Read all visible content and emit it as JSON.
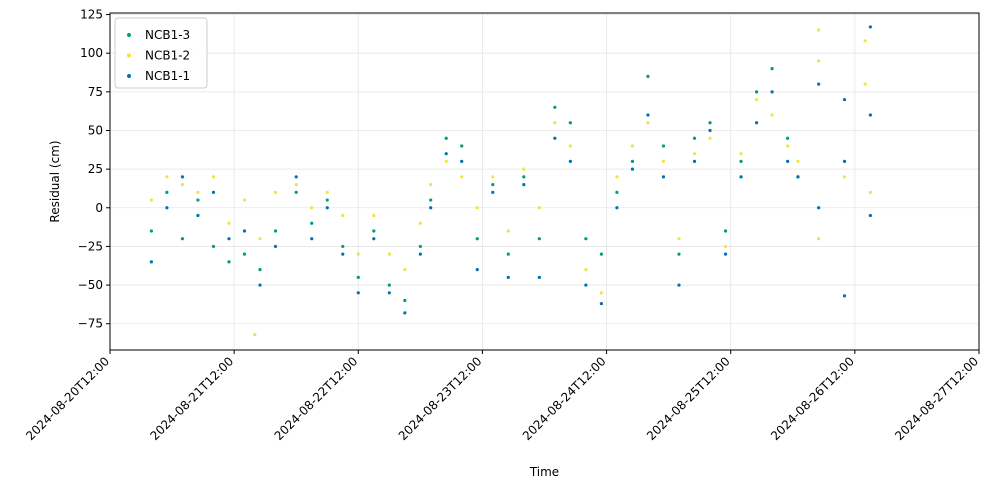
{
  "chart_data": {
    "type": "scatter",
    "xlabel": "Time",
    "ylabel": "Residual (cm)",
    "x_axis_kind": "datetime",
    "xlim": [
      "2024-08-20T12:00",
      "2024-08-27T12:00"
    ],
    "ylim": [
      -92,
      126
    ],
    "x_ticks": [
      "2024-08-20T12:00",
      "2024-08-21T12:00",
      "2024-08-22T12:00",
      "2024-08-23T12:00",
      "2024-08-24T12:00",
      "2024-08-25T12:00",
      "2024-08-26T12:00",
      "2024-08-27T12:00"
    ],
    "y_ticks": [
      -75,
      -50,
      -25,
      0,
      25,
      50,
      75,
      100,
      125
    ],
    "y_tick_labels": [
      "−75",
      "−50",
      "−25",
      "0",
      "25",
      "50",
      "75",
      "100",
      "125"
    ],
    "grid": true,
    "legend_position": "top-left",
    "series": [
      {
        "name": "NCB1-3",
        "color": "#009e73",
        "points": [
          [
            "2024-08-20T20:00",
            -15
          ],
          [
            "2024-08-20T23:00",
            10
          ],
          [
            "2024-08-21T02:00",
            -20
          ],
          [
            "2024-08-21T05:00",
            5
          ],
          [
            "2024-08-21T08:00",
            -25
          ],
          [
            "2024-08-21T11:00",
            -35
          ],
          [
            "2024-08-21T14:00",
            -30
          ],
          [
            "2024-08-21T17:00",
            -40
          ],
          [
            "2024-08-21T20:00",
            -15
          ],
          [
            "2024-08-22T00:00",
            10
          ],
          [
            "2024-08-22T03:00",
            -10
          ],
          [
            "2024-08-22T06:00",
            5
          ],
          [
            "2024-08-22T09:00",
            -25
          ],
          [
            "2024-08-22T12:00",
            -45
          ],
          [
            "2024-08-22T15:00",
            -15
          ],
          [
            "2024-08-22T18:00",
            -50
          ],
          [
            "2024-08-22T21:00",
            -60
          ],
          [
            "2024-08-23T00:00",
            -25
          ],
          [
            "2024-08-23T02:00",
            5
          ],
          [
            "2024-08-23T05:00",
            45
          ],
          [
            "2024-08-23T08:00",
            40
          ],
          [
            "2024-08-23T11:00",
            -20
          ],
          [
            "2024-08-23T14:00",
            15
          ],
          [
            "2024-08-23T17:00",
            -30
          ],
          [
            "2024-08-23T20:00",
            20
          ],
          [
            "2024-08-23T23:00",
            -20
          ],
          [
            "2024-08-24T02:00",
            65
          ],
          [
            "2024-08-24T05:00",
            55
          ],
          [
            "2024-08-24T08:00",
            -20
          ],
          [
            "2024-08-24T11:00",
            -30
          ],
          [
            "2024-08-24T14:00",
            10
          ],
          [
            "2024-08-24T17:00",
            30
          ],
          [
            "2024-08-24T20:00",
            85
          ],
          [
            "2024-08-24T23:00",
            40
          ],
          [
            "2024-08-25T02:00",
            -30
          ],
          [
            "2024-08-25T05:00",
            45
          ],
          [
            "2024-08-25T08:00",
            55
          ],
          [
            "2024-08-25T11:00",
            -15
          ],
          [
            "2024-08-25T14:00",
            30
          ],
          [
            "2024-08-25T17:00",
            75
          ],
          [
            "2024-08-25T20:00",
            90
          ],
          [
            "2024-08-25T23:00",
            45
          ],
          [
            "2024-08-26T01:00",
            20
          ]
        ]
      },
      {
        "name": "NCB1-2",
        "color": "#f0e442",
        "points": [
          [
            "2024-08-20T20:00",
            5
          ],
          [
            "2024-08-20T23:00",
            20
          ],
          [
            "2024-08-21T02:00",
            15
          ],
          [
            "2024-08-21T05:00",
            10
          ],
          [
            "2024-08-21T08:00",
            20
          ],
          [
            "2024-08-21T11:00",
            -10
          ],
          [
            "2024-08-21T14:00",
            5
          ],
          [
            "2024-08-21T16:00",
            -82
          ],
          [
            "2024-08-21T17:00",
            -20
          ],
          [
            "2024-08-21T20:00",
            10
          ],
          [
            "2024-08-22T00:00",
            15
          ],
          [
            "2024-08-22T03:00",
            0
          ],
          [
            "2024-08-22T06:00",
            10
          ],
          [
            "2024-08-22T09:00",
            -5
          ],
          [
            "2024-08-22T12:00",
            -30
          ],
          [
            "2024-08-22T15:00",
            -5
          ],
          [
            "2024-08-22T18:00",
            -30
          ],
          [
            "2024-08-22T21:00",
            -40
          ],
          [
            "2024-08-23T00:00",
            -10
          ],
          [
            "2024-08-23T02:00",
            15
          ],
          [
            "2024-08-23T05:00",
            30
          ],
          [
            "2024-08-23T08:00",
            20
          ],
          [
            "2024-08-23T11:00",
            0
          ],
          [
            "2024-08-23T14:00",
            20
          ],
          [
            "2024-08-23T17:00",
            -15
          ],
          [
            "2024-08-23T20:00",
            25
          ],
          [
            "2024-08-23T23:00",
            0
          ],
          [
            "2024-08-24T02:00",
            55
          ],
          [
            "2024-08-24T05:00",
            40
          ],
          [
            "2024-08-24T08:00",
            -40
          ],
          [
            "2024-08-24T11:00",
            -55
          ],
          [
            "2024-08-24T14:00",
            20
          ],
          [
            "2024-08-24T17:00",
            40
          ],
          [
            "2024-08-24T20:00",
            55
          ],
          [
            "2024-08-24T23:00",
            30
          ],
          [
            "2024-08-25T02:00",
            -20
          ],
          [
            "2024-08-25T05:00",
            35
          ],
          [
            "2024-08-25T08:00",
            45
          ],
          [
            "2024-08-25T11:00",
            -25
          ],
          [
            "2024-08-25T14:00",
            35
          ],
          [
            "2024-08-25T17:00",
            70
          ],
          [
            "2024-08-25T20:00",
            60
          ],
          [
            "2024-08-25T23:00",
            40
          ],
          [
            "2024-08-26T01:00",
            30
          ],
          [
            "2024-08-26T05:00",
            115
          ],
          [
            "2024-08-26T05:00",
            95
          ],
          [
            "2024-08-26T05:00",
            -20
          ],
          [
            "2024-08-26T10:00",
            20
          ],
          [
            "2024-08-26T14:00",
            108
          ],
          [
            "2024-08-26T14:00",
            80
          ],
          [
            "2024-08-26T15:00",
            10
          ]
        ]
      },
      {
        "name": "NCB1-1",
        "color": "#0072b2",
        "points": [
          [
            "2024-08-20T20:00",
            -35
          ],
          [
            "2024-08-20T23:00",
            0
          ],
          [
            "2024-08-21T02:00",
            20
          ],
          [
            "2024-08-21T05:00",
            -5
          ],
          [
            "2024-08-21T08:00",
            10
          ],
          [
            "2024-08-21T11:00",
            -20
          ],
          [
            "2024-08-21T14:00",
            -15
          ],
          [
            "2024-08-21T17:00",
            -50
          ],
          [
            "2024-08-21T20:00",
            -25
          ],
          [
            "2024-08-22T00:00",
            20
          ],
          [
            "2024-08-22T03:00",
            -20
          ],
          [
            "2024-08-22T06:00",
            0
          ],
          [
            "2024-08-22T09:00",
            -30
          ],
          [
            "2024-08-22T12:00",
            -55
          ],
          [
            "2024-08-22T15:00",
            -20
          ],
          [
            "2024-08-22T18:00",
            -55
          ],
          [
            "2024-08-22T21:00",
            -68
          ],
          [
            "2024-08-23T00:00",
            -30
          ],
          [
            "2024-08-23T02:00",
            0
          ],
          [
            "2024-08-23T05:00",
            35
          ],
          [
            "2024-08-23T08:00",
            30
          ],
          [
            "2024-08-23T11:00",
            -40
          ],
          [
            "2024-08-23T14:00",
            10
          ],
          [
            "2024-08-23T17:00",
            -45
          ],
          [
            "2024-08-23T20:00",
            15
          ],
          [
            "2024-08-23T23:00",
            -45
          ],
          [
            "2024-08-24T02:00",
            45
          ],
          [
            "2024-08-24T05:00",
            30
          ],
          [
            "2024-08-24T08:00",
            -50
          ],
          [
            "2024-08-24T11:00",
            -62
          ],
          [
            "2024-08-24T14:00",
            0
          ],
          [
            "2024-08-24T17:00",
            25
          ],
          [
            "2024-08-24T20:00",
            60
          ],
          [
            "2024-08-24T23:00",
            20
          ],
          [
            "2024-08-25T02:00",
            -50
          ],
          [
            "2024-08-25T05:00",
            30
          ],
          [
            "2024-08-25T08:00",
            50
          ],
          [
            "2024-08-25T11:00",
            -30
          ],
          [
            "2024-08-25T14:00",
            20
          ],
          [
            "2024-08-25T17:00",
            55
          ],
          [
            "2024-08-25T20:00",
            75
          ],
          [
            "2024-08-25T23:00",
            30
          ],
          [
            "2024-08-26T01:00",
            20
          ],
          [
            "2024-08-26T05:00",
            80
          ],
          [
            "2024-08-26T05:00",
            0
          ],
          [
            "2024-08-26T10:00",
            70
          ],
          [
            "2024-08-26T10:00",
            -57
          ],
          [
            "2024-08-26T10:00",
            30
          ],
          [
            "2024-08-26T15:00",
            117
          ],
          [
            "2024-08-26T15:00",
            60
          ],
          [
            "2024-08-26T15:00",
            -5
          ]
        ]
      }
    ]
  }
}
